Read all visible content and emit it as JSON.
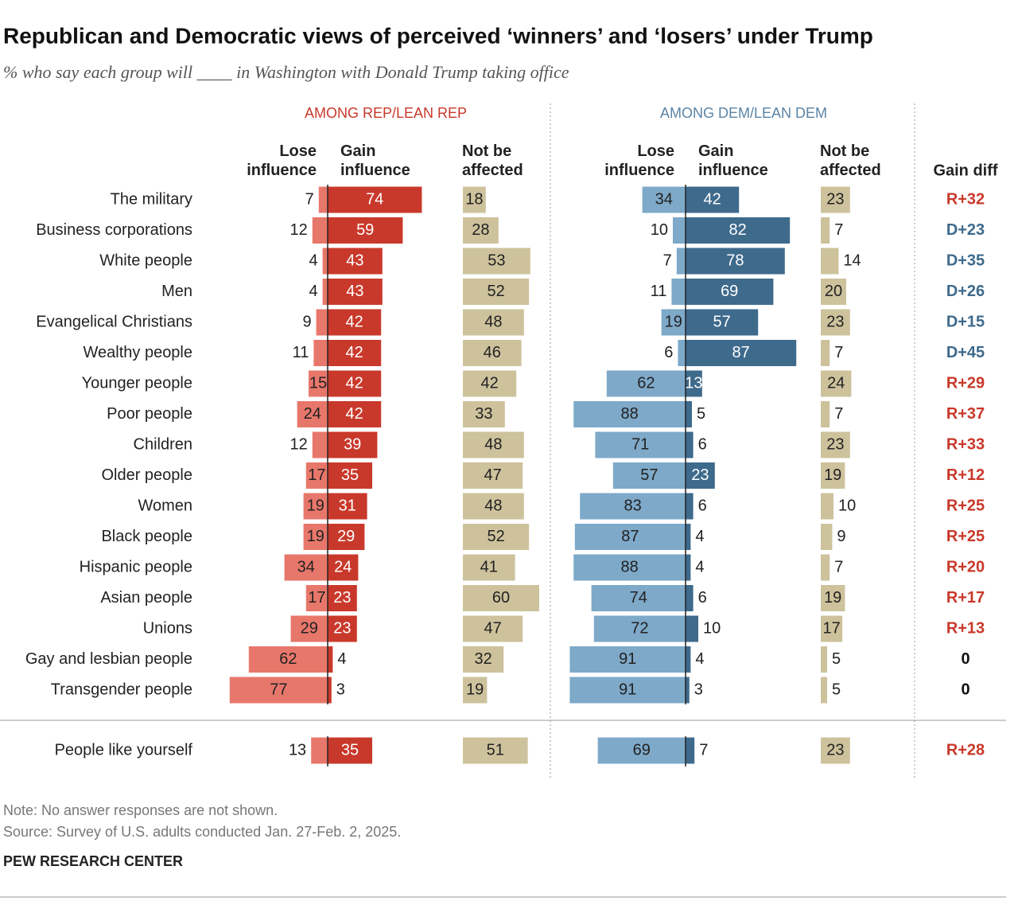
{
  "chart_data": {
    "type": "diverging_bar",
    "title": "Republican and Democratic views of perceived ‘winners’ and ‘losers’ under Trump",
    "subtitle": "% who say each group will ____ in Washington with Donald Trump taking office",
    "categories": [
      "The military",
      "Business corporations",
      "White people",
      "Men",
      "Evangelical Christians",
      "Wealthy people",
      "Younger people",
      "Poor people",
      "Children",
      "Older people",
      "Women",
      "Black people",
      "Hispanic people",
      "Asian people",
      "Unions",
      "Gay and lesbian people",
      "Transgender people",
      "People like yourself"
    ],
    "panels": [
      {
        "name": "AMONG REP/LEAN REP",
        "color": "#c9392b",
        "series": [
          {
            "name": "Lose influence",
            "color": "#e8776b",
            "values": [
              7,
              12,
              4,
              4,
              9,
              11,
              15,
              24,
              12,
              17,
              19,
              19,
              34,
              17,
              29,
              62,
              77,
              13
            ]
          },
          {
            "name": "Gain influence",
            "color": "#c9392b",
            "values": [
              74,
              59,
              43,
              43,
              42,
              42,
              42,
              42,
              39,
              35,
              31,
              29,
              24,
              23,
              23,
              4,
              3,
              35
            ]
          },
          {
            "name": "Not be affected",
            "color": "#cdc29c",
            "values": [
              18,
              28,
              53,
              52,
              48,
              46,
              42,
              33,
              48,
              47,
              48,
              52,
              41,
              60,
              47,
              32,
              19,
              51
            ]
          }
        ]
      },
      {
        "name": "AMONG DEM/LEAN DEM",
        "color": "#5a84a6",
        "series": [
          {
            "name": "Lose influence",
            "color": "#7ea9c9",
            "values": [
              34,
              10,
              7,
              11,
              19,
              6,
              62,
              88,
              71,
              57,
              83,
              87,
              88,
              74,
              72,
              91,
              91,
              69
            ]
          },
          {
            "name": "Gain influence",
            "color": "#3e6a8c",
            "values": [
              42,
              82,
              78,
              69,
              57,
              87,
              13,
              5,
              6,
              23,
              6,
              4,
              4,
              6,
              10,
              4,
              3,
              7
            ]
          },
          {
            "name": "Not be affected",
            "color": "#cdc29c",
            "values": [
              23,
              7,
              14,
              20,
              23,
              7,
              24,
              7,
              23,
              19,
              10,
              9,
              7,
              19,
              17,
              5,
              5,
              23
            ]
          }
        ]
      }
    ],
    "gain_diff": {
      "name": "Gain diff",
      "labels": [
        "R+32",
        "D+23",
        "D+35",
        "D+26",
        "D+15",
        "D+45",
        "R+29",
        "R+37",
        "R+33",
        "R+12",
        "R+25",
        "R+25",
        "R+20",
        "R+17",
        "R+13",
        "0",
        "0",
        "R+28"
      ]
    },
    "note": "Note: No answer responses are not shown.",
    "source": "Source: Survey of U.S. adults conducted Jan. 27-Feb. 2, 2025.",
    "footer": "PEW RESEARCH CENTER"
  }
}
